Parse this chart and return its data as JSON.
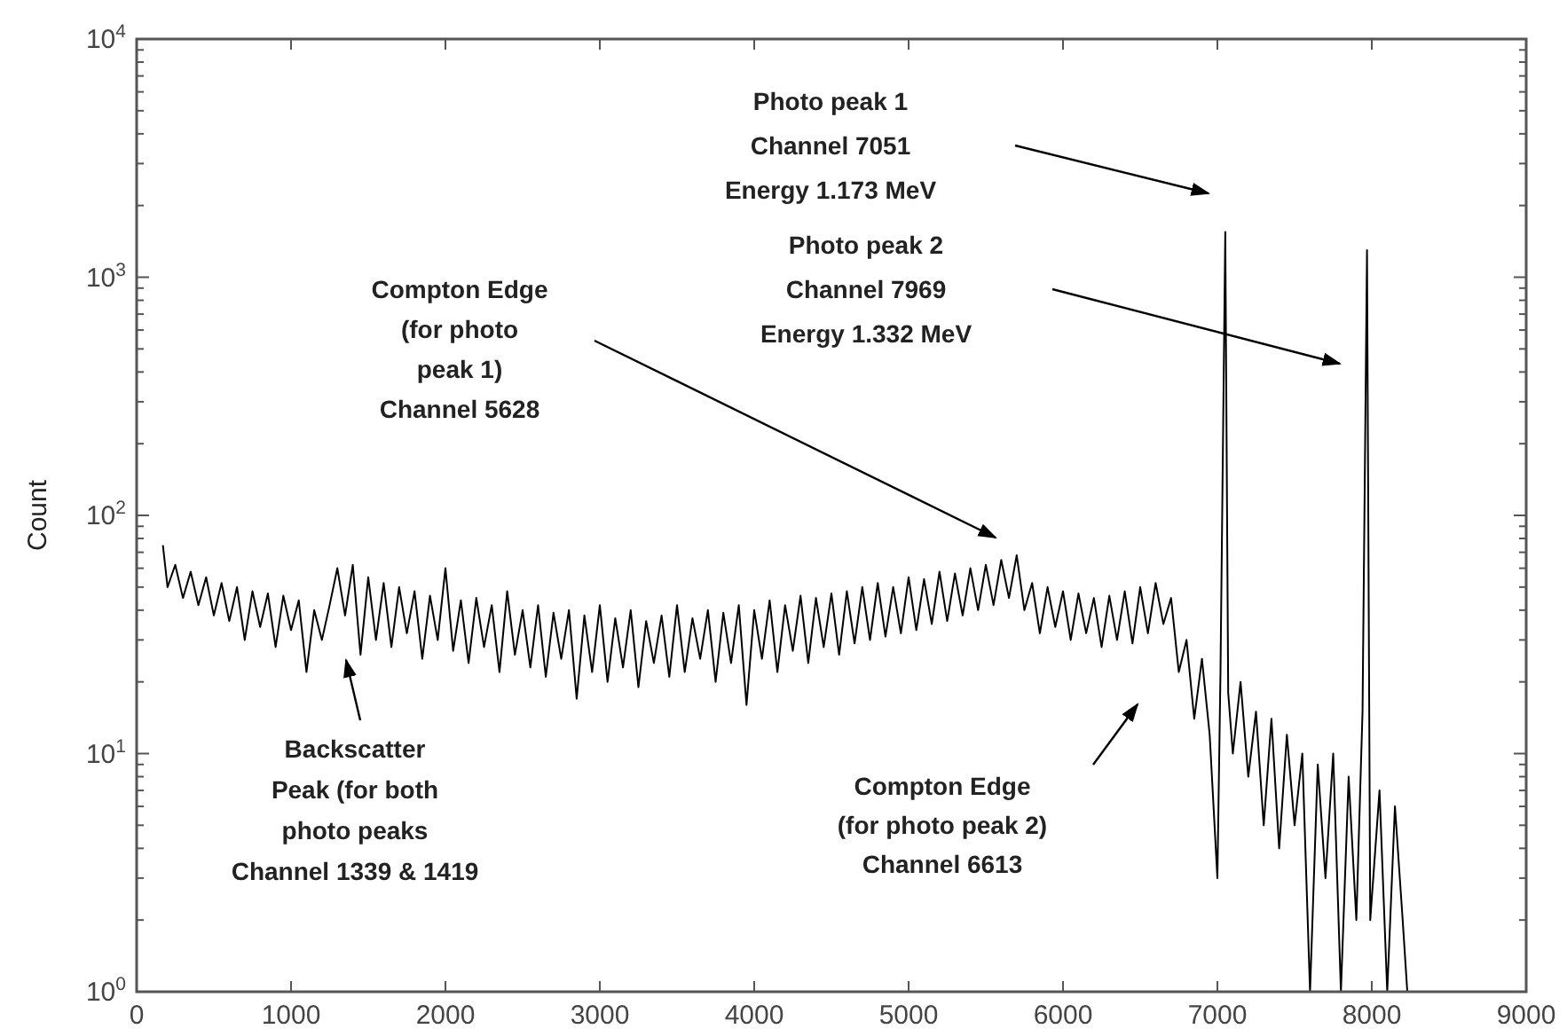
{
  "chart_data": {
    "type": "line",
    "ylabel": "Count",
    "log": "y",
    "xlim": [
      0,
      9000
    ],
    "xticks": [
      0,
      1000,
      2000,
      3000,
      4000,
      5000,
      6000,
      7000,
      8000,
      9000
    ],
    "ylim": [
      1,
      10000
    ],
    "yticks": [
      {
        "value": 1,
        "label": "10$^{0}$"
      },
      {
        "value": 2,
        "label": null
      },
      {
        "value": 3,
        "label": null
      },
      {
        "value": 4,
        "label": null
      },
      {
        "value": 5,
        "label": null
      },
      {
        "value": 6,
        "label": null
      },
      {
        "value": 7,
        "label": null
      },
      {
        "value": 8,
        "label": null
      },
      {
        "value": 9,
        "label": null
      },
      {
        "value": 10,
        "label": "10$^{1}$"
      },
      {
        "value": 20,
        "label": null
      },
      {
        "value": 30,
        "label": null
      },
      {
        "value": 40,
        "label": null
      },
      {
        "value": 50,
        "label": null
      },
      {
        "value": 60,
        "label": null
      },
      {
        "value": 70,
        "label": null
      },
      {
        "value": 80,
        "label": null
      },
      {
        "value": 90,
        "label": null
      },
      {
        "value": 100,
        "label": "10$^{2}$"
      },
      {
        "value": 200,
        "label": null
      },
      {
        "value": 300,
        "label": null
      },
      {
        "value": 400,
        "label": null
      },
      {
        "value": 500,
        "label": null
      },
      {
        "value": 600,
        "label": null
      },
      {
        "value": 700,
        "label": null
      },
      {
        "value": 800,
        "label": null
      },
      {
        "value": 900,
        "label": null
      },
      {
        "value": 1000,
        "label": "10$^{3}$"
      },
      {
        "value": 2000,
        "label": null
      },
      {
        "value": 3000,
        "label": null
      },
      {
        "value": 4000,
        "label": null
      },
      {
        "value": 5000,
        "label": null
      },
      {
        "value": 6000,
        "label": null
      },
      {
        "value": 7000,
        "label": null
      },
      {
        "value": 8000,
        "label": null
      },
      {
        "value": 9000,
        "label": null
      },
      {
        "value": 10000,
        "label": "10$^{4}$"
      }
    ],
    "grid": false,
    "marker": "none",
    "line_style": "solid",
    "series": [
      {
        "color": "#000000",
        "x": [
          170,
          200,
          250,
          300,
          350,
          400,
          450,
          500,
          550,
          600,
          650,
          700,
          750,
          800,
          850,
          900,
          950,
          1000,
          1050,
          1100,
          1150,
          1200,
          1250,
          1300,
          1350,
          1400,
          1450,
          1500,
          1550,
          1600,
          1650,
          1700,
          1750,
          1800,
          1850,
          1900,
          1950,
          2000,
          2050,
          2100,
          2150,
          2200,
          2250,
          2300,
          2350,
          2400,
          2450,
          2500,
          2550,
          2600,
          2650,
          2700,
          2750,
          2800,
          2850,
          2900,
          2950,
          3000,
          3050,
          3100,
          3150,
          3200,
          3250,
          3300,
          3350,
          3400,
          3450,
          3500,
          3550,
          3600,
          3650,
          3700,
          3750,
          3800,
          3850,
          3900,
          3950,
          4000,
          4050,
          4100,
          4150,
          4200,
          4250,
          4300,
          4350,
          4400,
          4450,
          4500,
          4550,
          4600,
          4650,
          4700,
          4750,
          4800,
          4850,
          4900,
          4950,
          5000,
          5050,
          5100,
          5150,
          5200,
          5250,
          5300,
          5350,
          5400,
          5450,
          5500,
          5550,
          5600,
          5650,
          5700,
          5750,
          5800,
          5850,
          5900,
          5950,
          6000,
          6050,
          6100,
          6150,
          6200,
          6250,
          6300,
          6350,
          6400,
          6450,
          6500,
          6550,
          6600,
          6650,
          6700,
          6750,
          6800,
          6850,
          6900,
          6950,
          7000,
          7020,
          7051,
          7070,
          7100,
          7150,
          7200,
          7250,
          7300,
          7350,
          7400,
          7450,
          7500,
          7550,
          7600,
          7650,
          7700,
          7750,
          7800,
          7850,
          7900,
          7940,
          7969,
          7990,
          8050,
          8100,
          8150,
          8200,
          8230
        ],
        "values": [
          75,
          50,
          62,
          45,
          58,
          42,
          55,
          38,
          52,
          36,
          50,
          30,
          48,
          34,
          47,
          28,
          46,
          33,
          44,
          22,
          40,
          30,
          42,
          60,
          38,
          62,
          26,
          55,
          30,
          52,
          28,
          50,
          32,
          48,
          25,
          46,
          30,
          60,
          27,
          44,
          24,
          45,
          28,
          42,
          22,
          48,
          26,
          40,
          23,
          42,
          21,
          39,
          25,
          40,
          17,
          38,
          22,
          42,
          20,
          37,
          23,
          40,
          19,
          36,
          24,
          38,
          21,
          42,
          22,
          37,
          25,
          40,
          20,
          39,
          24,
          42,
          16,
          40,
          25,
          44,
          22,
          42,
          27,
          46,
          24,
          45,
          28,
          47,
          26,
          48,
          29,
          50,
          30,
          52,
          31,
          50,
          32,
          55,
          33,
          54,
          35,
          58,
          36,
          57,
          38,
          60,
          40,
          62,
          42,
          65,
          45,
          68,
          40,
          52,
          32,
          50,
          34,
          48,
          30,
          47,
          32,
          45,
          28,
          46,
          30,
          48,
          29,
          50,
          32,
          52,
          35,
          45,
          22,
          30,
          14,
          25,
          12,
          3,
          22,
          1550,
          18,
          10,
          20,
          8,
          15,
          5,
          14,
          4,
          12,
          5,
          10,
          1,
          9,
          3,
          10,
          1,
          8,
          2,
          15,
          1300,
          2,
          7,
          1,
          6,
          2,
          1
        ]
      }
    ],
    "annotations": [
      "Photo peak 1\nChannel 7051\nEnergy 1.173 MeV",
      "Photo peak 2\nChannel 7969\nEnergy 1.332 MeV",
      "Compton Edge\n(for photo\npeak 1)\nChannel 5628",
      "Backscatter\nPeak (for both\nphoto peaks\nChannel 1339 & 1419",
      "Compton Edge\n(for photo peak 2)\nChannel 6613"
    ]
  }
}
